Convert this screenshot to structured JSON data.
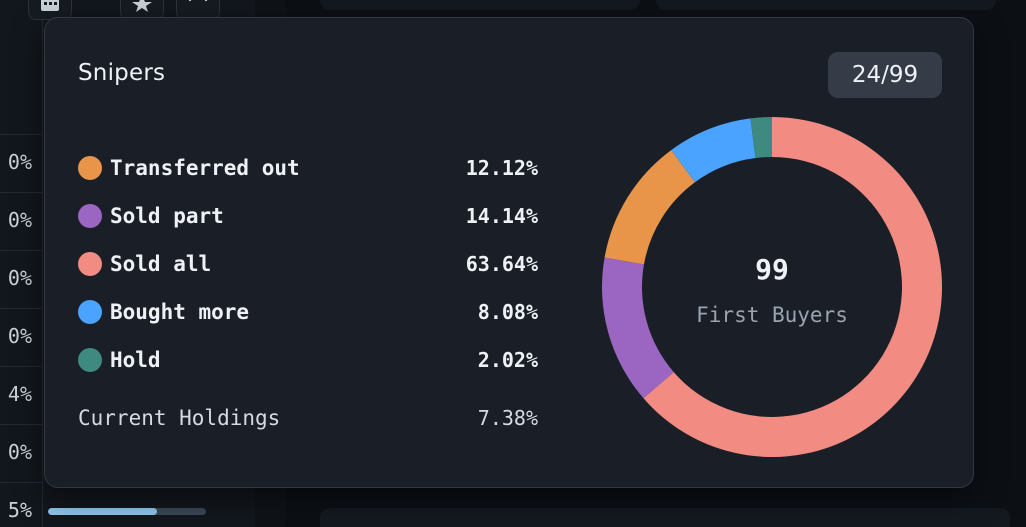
{
  "background": {
    "row_percents": [
      "0%",
      "0%",
      "0%",
      "0%",
      "4%",
      "0%",
      "5%"
    ],
    "progress_fraction": 0.69
  },
  "popover": {
    "title": "Snipers",
    "count_badge": "24/99",
    "legend": [
      {
        "label": "Transferred out",
        "value": "12.12%",
        "color": "#e8954a"
      },
      {
        "label": "Sold part",
        "value": "14.14%",
        "color": "#9a66c2"
      },
      {
        "label": "Sold all",
        "value": "63.64%",
        "color": "#f28b82"
      },
      {
        "label": "Bought more",
        "value": "8.08%",
        "color": "#4aa3ff"
      },
      {
        "label": "Hold",
        "value": "2.02%",
        "color": "#3f8a80"
      }
    ],
    "holdings": {
      "label": "Current Holdings",
      "value": "7.38%"
    },
    "donut": {
      "center_value": "99",
      "center_label": "First Buyers"
    }
  },
  "chart_data": {
    "type": "pie",
    "categories": [
      "Transferred out",
      "Sold part",
      "Sold all",
      "Bought more",
      "Hold"
    ],
    "values": [
      12.12,
      14.14,
      63.64,
      8.08,
      2.02
    ],
    "colors": [
      "#e8954a",
      "#9a66c2",
      "#f28b82",
      "#4aa3ff",
      "#3f8a80"
    ],
    "title": "Snipers"
  }
}
